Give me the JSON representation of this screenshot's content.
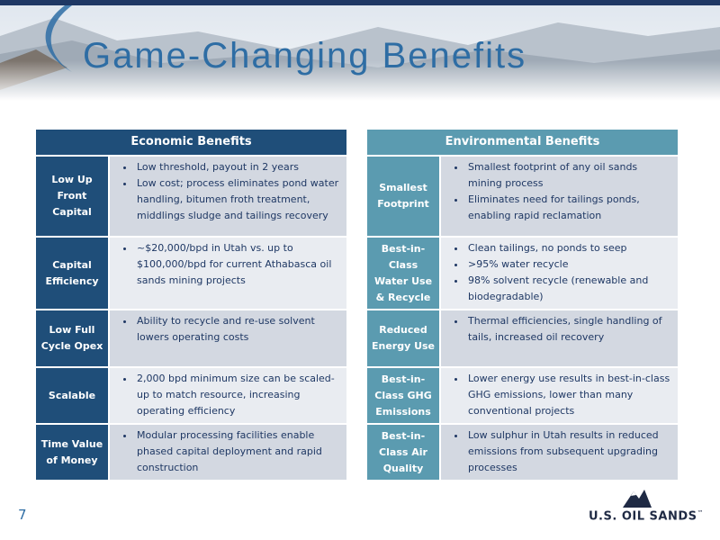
{
  "header": {
    "title": "Game-Changing Benefits",
    "page_number": "7"
  },
  "logo": {
    "name": "U.S. OIL SANDS",
    "mark": "™"
  },
  "tables": [
    {
      "title": "Economic Benefits",
      "rows": [
        {
          "label": "Low Up Front Capital",
          "bullets": [
            "Low threshold, payout in 2 years",
            "Low cost; process eliminates pond water handling, bitumen froth treatment, middlings sludge and tailings recovery"
          ]
        },
        {
          "label": "Capital Efficiency",
          "bullets": [
            "~$20,000/bpd in Utah vs. up to $100,000/bpd for current Athabasca oil sands mining projects"
          ]
        },
        {
          "label": "Low Full Cycle Opex",
          "bullets": [
            "Ability to recycle and re-use solvent lowers operating costs"
          ]
        },
        {
          "label": "Scalable",
          "bullets": [
            "2,000 bpd minimum size can be scaled-up to match resource, increasing operating efficiency"
          ]
        },
        {
          "label": "Time Value of Money",
          "bullets": [
            "Modular processing facilities enable phased capital deployment and rapid construction"
          ]
        }
      ]
    },
    {
      "title": "Environmental Benefits",
      "rows": [
        {
          "label": "Smallest Footprint",
          "bullets": [
            "Smallest footprint of any oil sands mining process",
            "Eliminates need for tailings ponds, enabling rapid reclamation"
          ]
        },
        {
          "label": "Best-in-Class Water Use & Recycle",
          "bullets": [
            "Clean tailings, no ponds to seep",
            ">95% water recycle",
            "98% solvent recycle (renewable and biodegradable)"
          ]
        },
        {
          "label": "Reduced Energy Use",
          "bullets": [
            "Thermal efficiencies, single handling of tails, increased oil recovery"
          ]
        },
        {
          "label": "Best-in-Class GHG Emissions",
          "bullets": [
            "Lower energy use results in best-in-class GHG emissions, lower than many conventional projects"
          ]
        },
        {
          "label": "Best-in-Class Air Quality",
          "bullets": [
            "Low sulphur in Utah results in reduced emissions from subsequent upgrading processes"
          ]
        }
      ]
    }
  ]
}
